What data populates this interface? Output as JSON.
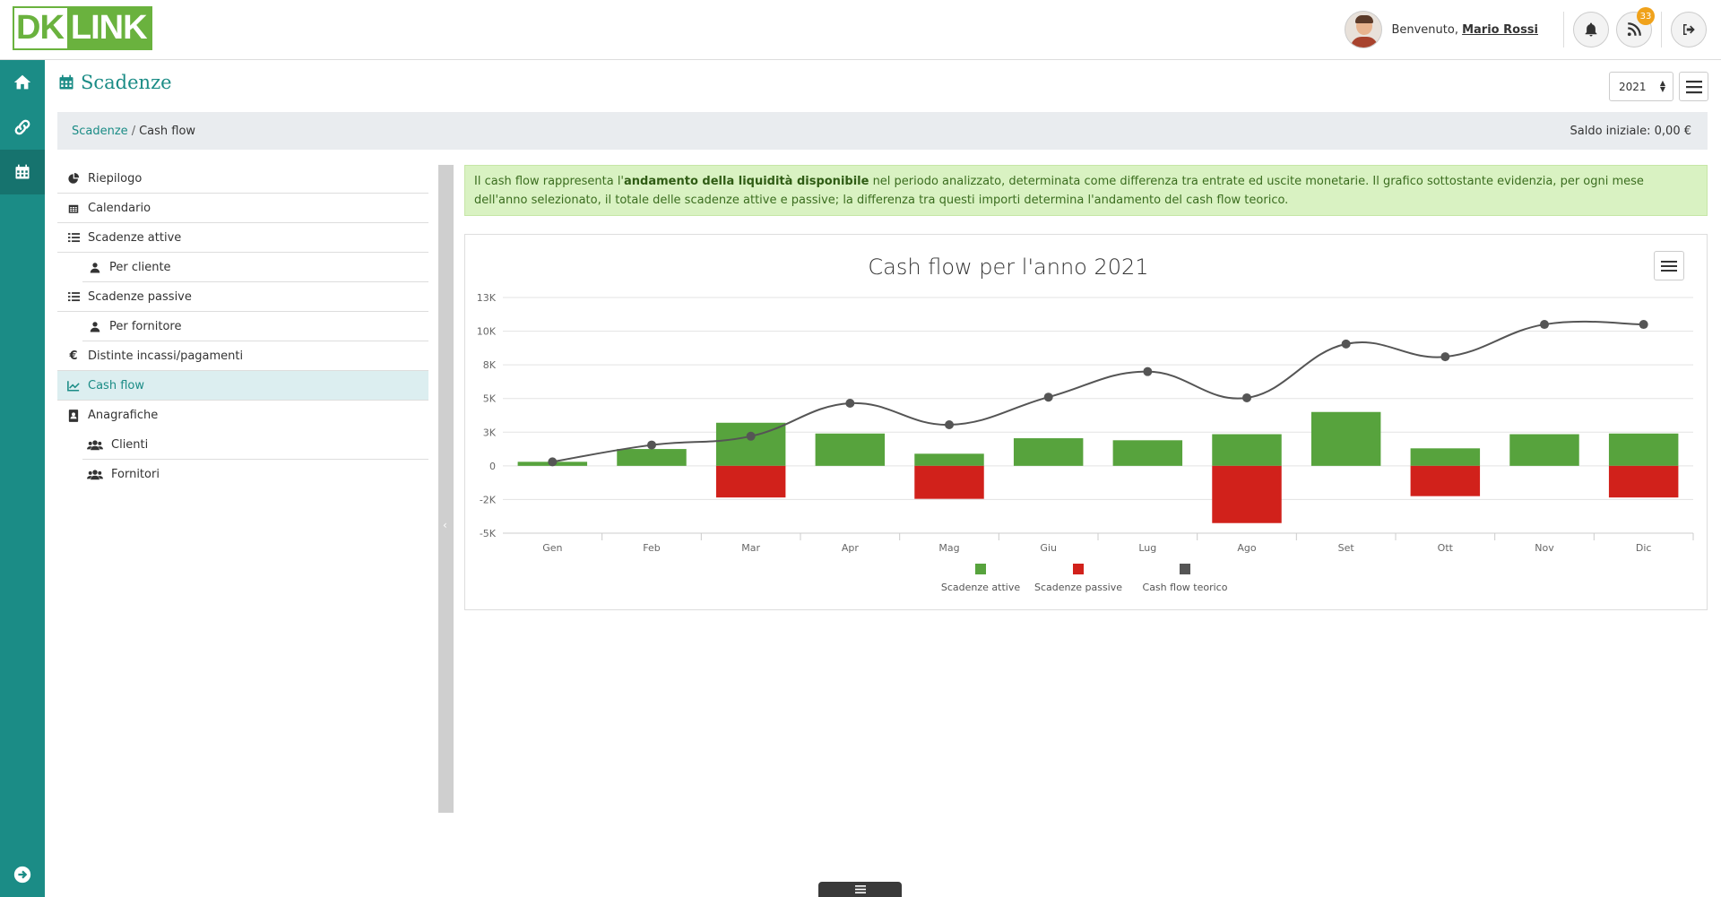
{
  "header": {
    "logo_dk": "DK",
    "logo_link": "LINK",
    "welcome_prefix": "Benvenuto,",
    "user_name": "Mario Rossi",
    "feed_badge": "33"
  },
  "page": {
    "title": "Scadenze",
    "year": "2021",
    "breadcrumb_link": "Scadenze",
    "breadcrumb_sep": "/",
    "breadcrumb_current": "Cash flow",
    "saldo": "Saldo iniziale: 0,00 €"
  },
  "sidemenu": {
    "items": [
      {
        "label": "Riepilogo",
        "icon": "pie-chart-icon"
      },
      {
        "label": "Calendario",
        "icon": "calendar-icon"
      },
      {
        "label": "Scadenze attive",
        "icon": "list-icon"
      },
      {
        "label": "Per cliente",
        "icon": "user-icon"
      },
      {
        "label": "Scadenze passive",
        "icon": "list-icon"
      },
      {
        "label": "Per fornitore",
        "icon": "user-icon"
      },
      {
        "label": "Distinte incassi/pagamenti",
        "icon": "euro-icon"
      },
      {
        "label": "Cash flow",
        "icon": "line-chart-icon"
      },
      {
        "label": "Anagrafiche",
        "icon": "address-book-icon"
      },
      {
        "label": "Clienti",
        "icon": "users-icon"
      },
      {
        "label": "Fornitori",
        "icon": "users-icon"
      }
    ]
  },
  "info": {
    "part1": "Il cash flow rappresenta l'",
    "bold": "andamento della liquidità disponibile",
    "part2": " nel periodo analizzato, determinata come differenza tra entrate ed uscite monetarie. Il grafico sottostante evidenzia, per ogni mese dell'anno selezionato, il totale delle scadenze attive e passive; la differenza tra questi importi determina l'andamento del cash flow teorico."
  },
  "chart_data": {
    "type": "bar",
    "title": "Cash flow per l'anno 2021",
    "categories": [
      "Gen",
      "Feb",
      "Mar",
      "Apr",
      "Mag",
      "Giu",
      "Lug",
      "Ago",
      "Set",
      "Ott",
      "Nov",
      "Dic"
    ],
    "y_ticks": [
      "13K",
      "10K",
      "8K",
      "5K",
      "3K",
      "0",
      "-2K",
      "-5K"
    ],
    "ylim": [
      -5000,
      12500
    ],
    "series": [
      {
        "name": "Scadenze attive",
        "type": "bar",
        "color": "#57a33d",
        "values": [
          300,
          1250,
          3200,
          2400,
          900,
          2050,
          1900,
          2350,
          4000,
          1300,
          2350,
          2400
        ]
      },
      {
        "name": "Scadenze passive",
        "type": "bar",
        "color": "#d1211b",
        "values": [
          0,
          0,
          -2350,
          0,
          -2450,
          0,
          0,
          -4250,
          0,
          -2250,
          0,
          -2350
        ]
      },
      {
        "name": "Cash flow teorico",
        "type": "spline",
        "color": "#555555",
        "values": [
          300,
          1550,
          2200,
          4650,
          3050,
          5100,
          7000,
          5050,
          9050,
          8100,
          10500,
          10500
        ]
      }
    ],
    "legend_position": "bottom-center",
    "grid": true
  },
  "colors": {
    "primary": "#1b8c86",
    "brand_green": "#6ab23e",
    "active_bar": "#57a33d",
    "passive_bar": "#d1211b"
  }
}
